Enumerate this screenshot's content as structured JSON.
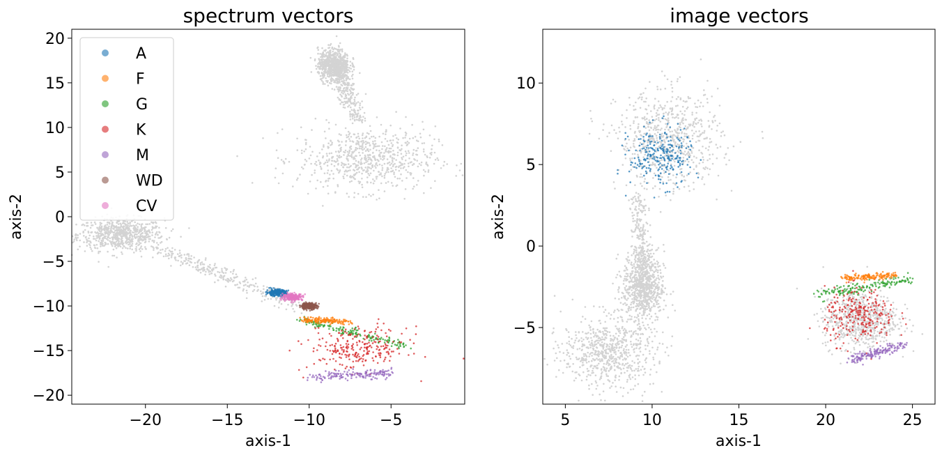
{
  "figure": {
    "background_point_color": "#d3d3d3",
    "class_colors": {
      "A": "#1f77b4",
      "F": "#ff7f0e",
      "G": "#2ca02c",
      "K": "#d62728",
      "M": "#9467bd",
      "WD": "#8c564b",
      "CV": "#e377c2"
    }
  },
  "chart_data": [
    {
      "type": "scatter",
      "title": "spectrum vectors",
      "xlabel": "axis-1",
      "ylabel": "axis-2",
      "xlim": [
        -24.5,
        -0.5
      ],
      "ylim": [
        -21,
        21
      ],
      "xticks": [
        -20,
        -15,
        -10,
        -5
      ],
      "xtick_labels": [
        "−20",
        "−15",
        "−10",
        "−5"
      ],
      "yticks": [
        -20,
        -15,
        -10,
        -5,
        0,
        5,
        10,
        15,
        20
      ],
      "ytick_labels": [
        "−20",
        "−15",
        "−10",
        "−5",
        "0",
        "5",
        "10",
        "15",
        "20"
      ],
      "legend": {
        "placement": "upper-left",
        "entries": [
          "A",
          "F",
          "G",
          "K",
          "M",
          "WD",
          "CV"
        ]
      },
      "background_cloud": {
        "label": "unlabeled",
        "regions": [
          {
            "shape": "blob",
            "center": [
              -21.5,
              -2.0
            ],
            "spread": [
              2.2,
              1.5
            ]
          },
          {
            "shape": "band",
            "from": [
              -19.5,
              -3.5
            ],
            "to": [
              -10.5,
              -10.0
            ],
            "width": 0.8
          },
          {
            "shape": "blob",
            "center": [
              -6.5,
              6.5
            ],
            "spread": [
              3.5,
              3.0
            ]
          },
          {
            "shape": "band",
            "from": [
              -8.5,
              17.5
            ],
            "to": [
              -7.0,
              11.0
            ],
            "width": 0.6
          },
          {
            "shape": "blob",
            "center": [
              -8.5,
              17.0
            ],
            "spread": [
              0.8,
              1.5
            ]
          }
        ]
      },
      "series": [
        {
          "name": "G",
          "region": {
            "shape": "band",
            "from": [
              -10.5,
              -11.5
            ],
            "to": [
              -4.0,
              -14.5
            ],
            "width": 0.4
          }
        },
        {
          "name": "K",
          "region": {
            "shape": "blob",
            "center": [
              -7.0,
              -14.8
            ],
            "spread": [
              2.5,
              2.0
            ]
          }
        },
        {
          "name": "M",
          "region": {
            "shape": "band",
            "from": [
              -10.0,
              -18.0
            ],
            "to": [
              -5.0,
              -17.5
            ],
            "width": 0.5
          }
        },
        {
          "name": "F",
          "region": {
            "shape": "band",
            "from": [
              -10.5,
              -11.5
            ],
            "to": [
              -7.5,
              -11.8
            ],
            "width": 0.3
          }
        },
        {
          "name": "WD",
          "region": {
            "shape": "blob",
            "center": [
              -10.0,
              -10.0
            ],
            "spread": [
              0.4,
              0.3
            ]
          }
        },
        {
          "name": "A",
          "region": {
            "shape": "blob",
            "center": [
              -12.0,
              -8.5
            ],
            "spread": [
              0.5,
              0.3
            ]
          }
        },
        {
          "name": "CV",
          "region": {
            "shape": "blob",
            "center": [
              -11.0,
              -9.0
            ],
            "spread": [
              0.5,
              0.3
            ]
          }
        }
      ]
    },
    {
      "type": "scatter",
      "title": "image vectors",
      "xlabel": "axis-1",
      "ylabel": "axis-2",
      "xlim": [
        3.7,
        26.3
      ],
      "ylim": [
        -9.7,
        13.3
      ],
      "xticks": [
        5,
        10,
        15,
        20,
        25
      ],
      "xtick_labels": [
        "5",
        "10",
        "15",
        "20",
        "25"
      ],
      "yticks": [
        -5,
        0,
        5,
        10
      ],
      "ytick_labels": [
        "−5",
        "0",
        "5",
        "10"
      ],
      "background_cloud": {
        "label": "unlabeled",
        "regions": [
          {
            "shape": "blob",
            "center": [
              11.0,
              6.5
            ],
            "spread": [
              2.5,
              2.5
            ]
          },
          {
            "shape": "band",
            "from": [
              9.2,
              3.0
            ],
            "to": [
              9.5,
              -3.0
            ],
            "width": 0.5
          },
          {
            "shape": "blob",
            "center": [
              7.5,
              -6.5
            ],
            "spread": [
              2.2,
              1.8
            ]
          },
          {
            "shape": "blob",
            "center": [
              9.5,
              -2.5
            ],
            "spread": [
              1.0,
              1.8
            ]
          },
          {
            "shape": "blob",
            "center": [
              22.0,
              -4.5
            ],
            "spread": [
              1.8,
              1.5
            ]
          }
        ]
      },
      "series": [
        {
          "name": "G",
          "region": {
            "shape": "band",
            "from": [
              19.5,
              -3.0
            ],
            "to": [
              25.0,
              -2.0
            ],
            "width": 0.3
          }
        },
        {
          "name": "K",
          "region": {
            "shape": "blob",
            "center": [
              22.0,
              -4.3
            ],
            "spread": [
              1.7,
              1.4
            ]
          }
        },
        {
          "name": "M",
          "region": {
            "shape": "band",
            "from": [
              21.5,
              -7.0
            ],
            "to": [
              24.5,
              -6.0
            ],
            "width": 0.3
          }
        },
        {
          "name": "F",
          "region": {
            "shape": "band",
            "from": [
              21.0,
              -2.0
            ],
            "to": [
              24.0,
              -1.8
            ],
            "width": 0.2
          }
        },
        {
          "name": "A",
          "region": {
            "shape": "blob",
            "center": [
              10.5,
              5.5
            ],
            "spread": [
              1.5,
              1.5
            ]
          }
        }
      ]
    }
  ]
}
